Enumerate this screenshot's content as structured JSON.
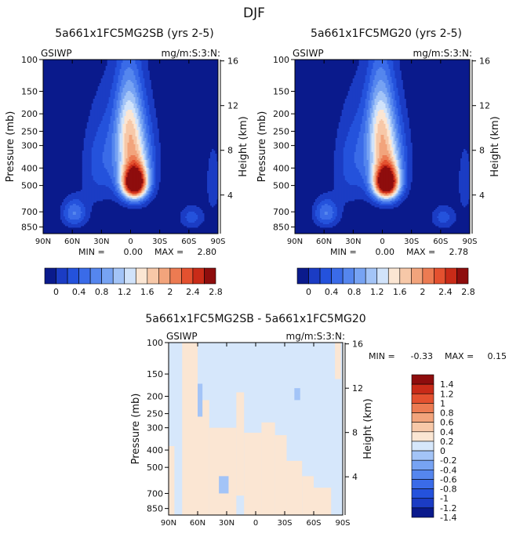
{
  "page_title": "DJF",
  "chart_data": [
    {
      "type": "heatmap",
      "title": "5a661x1FC5MG2SB (yrs 2-5)",
      "variable": "GSIWP",
      "units": "mg/m:S:3:N:",
      "ylabel": "Pressure (mb)",
      "ylabel_right": "Height (km)",
      "x_ticks": [
        "90N",
        "60N",
        "30N",
        "0",
        "30S",
        "60S",
        "90S"
      ],
      "x_values": [
        -90,
        -60,
        -30,
        0,
        30,
        60,
        90
      ],
      "xlim": [
        -90,
        90
      ],
      "y_ticks": [
        "100",
        "150",
        "200",
        "250",
        "300",
        "400",
        "500",
        "700",
        "850"
      ],
      "y_values": [
        100,
        150,
        200,
        250,
        300,
        400,
        500,
        700,
        850
      ],
      "ylim": [
        100,
        925
      ],
      "height_ticks": [
        "16",
        "12",
        "8",
        "4"
      ],
      "height_values": [
        16,
        12,
        8,
        4
      ],
      "min_label": "MIN =",
      "min_value": "0.00",
      "max_label": "MAX =",
      "max_value": "2.80",
      "colorbar_labels": [
        "0",
        "0.4",
        "0.8",
        "1.2",
        "1.6",
        "2",
        "2.4",
        "2.8"
      ],
      "levels": [
        0,
        0.2,
        0.4,
        0.6,
        0.8,
        1.0,
        1.2,
        1.4,
        1.6,
        1.8,
        2.0,
        2.2,
        2.4,
        2.6,
        2.8
      ],
      "colors": [
        "#0a1a8c",
        "#1b3cc4",
        "#2452dc",
        "#3a6be8",
        "#5586ee",
        "#77a3f3",
        "#a3c4f7",
        "#d1e3fa",
        "#fbe6d3",
        "#f7c8a8",
        "#f2a47c",
        "#ec7b52",
        "#e4512f",
        "#c92b18",
        "#8e0d0d"
      ],
      "features": [
        {
          "lat": 4,
          "p": 490,
          "amp": 2.8,
          "sx": 9,
          "sp": 70
        },
        {
          "lat": 5,
          "p": 380,
          "amp": 1.3,
          "sx": 12,
          "sp": 130
        },
        {
          "lat": -2,
          "p": 210,
          "amp": 0.9,
          "sx": 9,
          "sp": 90
        },
        {
          "lat": -10,
          "p": 310,
          "amp": 0.55,
          "sx": 20,
          "sp": 140
        },
        {
          "lat": -58,
          "p": 710,
          "amp": 0.8,
          "sx": 9,
          "sp": 90
        },
        {
          "lat": 63,
          "p": 750,
          "amp": 0.5,
          "sx": 9,
          "sp": 80
        },
        {
          "lat": 85,
          "p": 480,
          "amp": 0.4,
          "sx": 5,
          "sp": 140
        },
        {
          "lat": -35,
          "p": 430,
          "amp": 0.3,
          "sx": 12,
          "sp": 160
        }
      ]
    },
    {
      "type": "heatmap",
      "title": "5a661x1FC5MG20 (yrs 2-5)",
      "variable": "GSIWP",
      "units": "mg/m:S:3:N:",
      "ylabel": "Pressure (mb)",
      "ylabel_right": "Height (km)",
      "x_ticks": [
        "90N",
        "60N",
        "30N",
        "0",
        "30S",
        "60S",
        "90S"
      ],
      "x_values": [
        -90,
        -60,
        -30,
        0,
        30,
        60,
        90
      ],
      "xlim": [
        -90,
        90
      ],
      "y_ticks": [
        "100",
        "150",
        "200",
        "250",
        "300",
        "400",
        "500",
        "700",
        "850"
      ],
      "y_values": [
        100,
        150,
        200,
        250,
        300,
        400,
        500,
        700,
        850
      ],
      "ylim": [
        100,
        925
      ],
      "height_ticks": [
        "16",
        "12",
        "8",
        "4"
      ],
      "height_values": [
        16,
        12,
        8,
        4
      ],
      "min_label": "MIN =",
      "min_value": "0.00",
      "max_label": "MAX =",
      "max_value": "2.78",
      "colorbar_labels": [
        "0",
        "0.4",
        "0.8",
        "1.2",
        "1.6",
        "2",
        "2.4",
        "2.8"
      ],
      "levels": [
        0,
        0.2,
        0.4,
        0.6,
        0.8,
        1.0,
        1.2,
        1.4,
        1.6,
        1.8,
        2.0,
        2.2,
        2.4,
        2.6,
        2.8
      ],
      "colors": [
        "#0a1a8c",
        "#1b3cc4",
        "#2452dc",
        "#3a6be8",
        "#5586ee",
        "#77a3f3",
        "#a3c4f7",
        "#d1e3fa",
        "#fbe6d3",
        "#f7c8a8",
        "#f2a47c",
        "#ec7b52",
        "#e4512f",
        "#c92b18",
        "#8e0d0d"
      ],
      "features": [
        {
          "lat": 4,
          "p": 490,
          "amp": 2.78,
          "sx": 9,
          "sp": 70
        },
        {
          "lat": 5,
          "p": 380,
          "amp": 1.3,
          "sx": 12,
          "sp": 130
        },
        {
          "lat": -2,
          "p": 210,
          "amp": 0.9,
          "sx": 9,
          "sp": 90
        },
        {
          "lat": -10,
          "p": 310,
          "amp": 0.55,
          "sx": 20,
          "sp": 140
        },
        {
          "lat": -58,
          "p": 710,
          "amp": 0.8,
          "sx": 9,
          "sp": 90
        },
        {
          "lat": 63,
          "p": 750,
          "amp": 0.5,
          "sx": 9,
          "sp": 80
        },
        {
          "lat": 85,
          "p": 480,
          "amp": 0.4,
          "sx": 5,
          "sp": 140
        },
        {
          "lat": -35,
          "p": 430,
          "amp": 0.3,
          "sx": 12,
          "sp": 160
        }
      ]
    },
    {
      "type": "heatmap",
      "title": "5a661x1FC5MG2SB - 5a661x1FC5MG20",
      "variable": "GSIWP",
      "units": "mg/m:S:3:N:",
      "ylabel": "Pressure (mb)",
      "ylabel_right": "Height (km)",
      "x_ticks": [
        "90N",
        "60N",
        "30N",
        "0",
        "30S",
        "60S",
        "90S"
      ],
      "x_values": [
        -90,
        -60,
        -30,
        0,
        30,
        60,
        90
      ],
      "xlim": [
        -90,
        90
      ],
      "y_ticks": [
        "100",
        "150",
        "200",
        "250",
        "300",
        "400",
        "500",
        "700",
        "850"
      ],
      "y_values": [
        100,
        150,
        200,
        250,
        300,
        400,
        500,
        700,
        850
      ],
      "ylim": [
        100,
        925
      ],
      "height_ticks": [
        "16",
        "12",
        "8",
        "4"
      ],
      "height_values": [
        16,
        12,
        8,
        4
      ],
      "min_label": "MIN =",
      "min_value": "-0.33",
      "max_label": "MAX =",
      "max_value": "0.15",
      "colorbar_labels": [
        "1.4",
        "1.2",
        "1",
        "0.8",
        "0.6",
        "0.4",
        "0.2",
        "0",
        "-0.2",
        "-0.4",
        "-0.6",
        "-0.8",
        "-1",
        "-1.2",
        "-1.4"
      ],
      "levels": [
        -1.4,
        -1.2,
        -1.0,
        -0.8,
        -0.6,
        -0.4,
        -0.2,
        0,
        0.2,
        0.4,
        0.6,
        0.8,
        1.0,
        1.2,
        1.4
      ],
      "colors": [
        "#0a1a8c",
        "#1b3cc4",
        "#2452dc",
        "#3a6be8",
        "#5586ee",
        "#77a3f3",
        "#a3c4f7",
        "#d6e7fb",
        "#fbe6d3",
        "#f7c8a8",
        "#f2a47c",
        "#ec7b52",
        "#e4512f",
        "#c92b18",
        "#8e0d0d"
      ],
      "difference_regions": [
        {
          "lat0": -76,
          "lat1": -60,
          "p0": 100,
          "p1": 925,
          "sign": "pos"
        },
        {
          "lat0": -90,
          "lat1": -84,
          "p0": 380,
          "p1": 925,
          "sign": "pos"
        },
        {
          "lat0": -60,
          "lat1": -48,
          "p0": 210,
          "p1": 925,
          "sign": "pos"
        },
        {
          "lat0": -48,
          "lat1": -20,
          "p0": 300,
          "p1": 925,
          "sign": "pos"
        },
        {
          "lat0": -20,
          "lat1": -12,
          "p0": 190,
          "p1": 720,
          "sign": "pos"
        },
        {
          "lat0": -12,
          "lat1": 6,
          "p0": 320,
          "p1": 925,
          "sign": "pos"
        },
        {
          "lat0": 6,
          "lat1": 20,
          "p0": 280,
          "p1": 925,
          "sign": "pos"
        },
        {
          "lat0": 20,
          "lat1": 32,
          "p0": 330,
          "p1": 925,
          "sign": "pos"
        },
        {
          "lat0": 32,
          "lat1": 48,
          "p0": 460,
          "p1": 925,
          "sign": "pos"
        },
        {
          "lat0": 48,
          "lat1": 60,
          "p0": 560,
          "p1": 925,
          "sign": "pos"
        },
        {
          "lat0": 60,
          "lat1": 78,
          "p0": 650,
          "p1": 925,
          "sign": "pos"
        },
        {
          "lat0": 82,
          "lat1": 88,
          "p0": 100,
          "p1": 160,
          "sign": "pos"
        },
        {
          "lat0": -60,
          "lat1": -55,
          "p0": 170,
          "p1": 260,
          "sign": "neg"
        },
        {
          "lat0": -38,
          "lat1": -28,
          "p0": 560,
          "p1": 700,
          "sign": "neg"
        },
        {
          "lat0": 40,
          "lat1": 46,
          "p0": 180,
          "p1": 210,
          "sign": "neg"
        }
      ]
    }
  ]
}
